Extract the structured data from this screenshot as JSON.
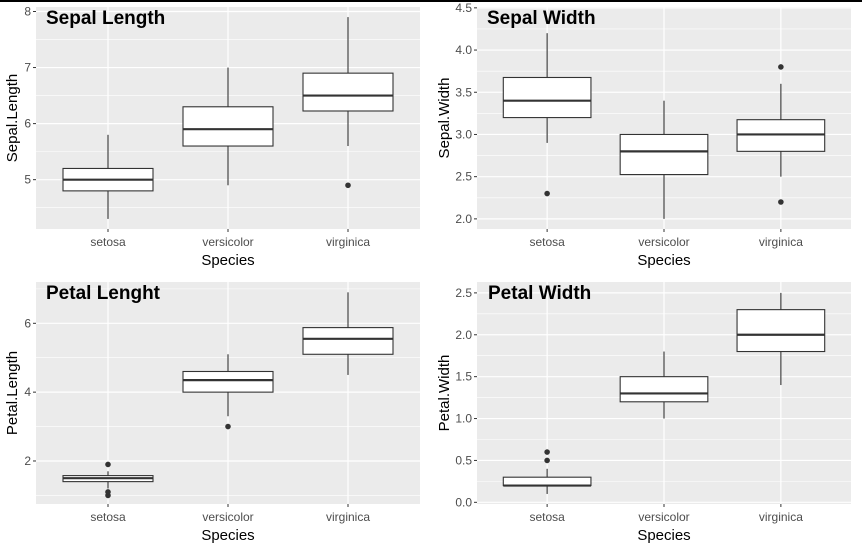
{
  "chart_data": [
    {
      "type": "boxplot",
      "title": "Sepal Length",
      "xlabel": "Species",
      "ylabel": "Sepal.Length",
      "categories": [
        "setosa",
        "versicolor",
        "virginica"
      ],
      "ylim": [
        4.12,
        8.08
      ],
      "yticks": [
        5,
        6,
        7,
        8
      ],
      "ytick_labels": [
        "5",
        "6",
        "7",
        "8"
      ],
      "minor_grid": [
        4.5,
        5.5,
        6.5,
        7.5
      ],
      "grid": true,
      "boxes": [
        {
          "category": "setosa",
          "lower_whisker": 4.3,
          "q1": 4.8,
          "median": 5.0,
          "q3": 5.2,
          "upper_whisker": 5.8,
          "outliers": []
        },
        {
          "category": "versicolor",
          "lower_whisker": 4.9,
          "q1": 5.6,
          "median": 5.9,
          "q3": 6.3,
          "upper_whisker": 7.0,
          "outliers": []
        },
        {
          "category": "virginica",
          "lower_whisker": 5.6,
          "q1": 6.225,
          "median": 6.5,
          "q3": 6.9,
          "upper_whisker": 7.9,
          "outliers": [
            4.9
          ]
        }
      ]
    },
    {
      "type": "boxplot",
      "title": "Sepal Width",
      "xlabel": "Species",
      "ylabel": "Sepal.Width",
      "categories": [
        "setosa",
        "versicolor",
        "virginica"
      ],
      "ylim": [
        1.88,
        4.51
      ],
      "yticks": [
        2.0,
        2.5,
        3.0,
        3.5,
        4.0,
        4.5
      ],
      "ytick_labels": [
        "2.0",
        "2.5",
        "3.0",
        "3.5",
        "4.0",
        "4.5"
      ],
      "minor_grid": [
        2.25,
        2.75,
        3.25,
        3.75,
        4.25
      ],
      "grid": true,
      "boxes": [
        {
          "category": "setosa",
          "lower_whisker": 2.9,
          "q1": 3.2,
          "median": 3.4,
          "q3": 3.675,
          "upper_whisker": 4.2,
          "outliers": [
            2.3
          ]
        },
        {
          "category": "versicolor",
          "lower_whisker": 2.0,
          "q1": 2.525,
          "median": 2.8,
          "q3": 3.0,
          "upper_whisker": 3.4,
          "outliers": []
        },
        {
          "category": "virginica",
          "lower_whisker": 2.5,
          "q1": 2.8,
          "median": 3.0,
          "q3": 3.175,
          "upper_whisker": 3.6,
          "outliers": [
            2.2,
            3.8
          ]
        }
      ]
    },
    {
      "type": "boxplot",
      "title": "Petal Lenght",
      "xlabel": "Species",
      "ylabel": "Petal.Length",
      "categories": [
        "setosa",
        "versicolor",
        "virginica"
      ],
      "ylim": [
        0.75,
        7.2
      ],
      "yticks": [
        2,
        4,
        6
      ],
      "ytick_labels": [
        "2",
        "4",
        "6"
      ],
      "minor_grid": [
        1,
        3,
        5,
        7
      ],
      "grid": true,
      "boxes": [
        {
          "category": "setosa",
          "lower_whisker": 1.2,
          "q1": 1.4,
          "median": 1.5,
          "q3": 1.575,
          "upper_whisker": 1.7,
          "outliers": [
            1.0,
            1.1,
            1.9
          ]
        },
        {
          "category": "versicolor",
          "lower_whisker": 3.3,
          "q1": 4.0,
          "median": 4.35,
          "q3": 4.6,
          "upper_whisker": 5.1,
          "outliers": [
            3.0
          ]
        },
        {
          "category": "virginica",
          "lower_whisker": 4.5,
          "q1": 5.1,
          "median": 5.55,
          "q3": 5.875,
          "upper_whisker": 6.9,
          "outliers": []
        }
      ]
    },
    {
      "type": "boxplot",
      "title": "Petal Width",
      "xlabel": "Species",
      "ylabel": "Petal.Width",
      "categories": [
        "setosa",
        "versicolor",
        "virginica"
      ],
      "ylim": [
        -0.02,
        2.63
      ],
      "yticks": [
        0.0,
        0.5,
        1.0,
        1.5,
        2.0,
        2.5
      ],
      "ytick_labels": [
        "0.0",
        "0.5",
        "1.0",
        "1.5",
        "2.0",
        "2.5"
      ],
      "minor_grid": [
        0.25,
        0.75,
        1.25,
        1.75,
        2.25
      ],
      "grid": true,
      "boxes": [
        {
          "category": "setosa",
          "lower_whisker": 0.1,
          "q1": 0.2,
          "median": 0.2,
          "q3": 0.3,
          "upper_whisker": 0.4,
          "outliers": [
            0.5,
            0.6
          ]
        },
        {
          "category": "versicolor",
          "lower_whisker": 1.0,
          "q1": 1.2,
          "median": 1.3,
          "q3": 1.5,
          "upper_whisker": 1.8,
          "outliers": []
        },
        {
          "category": "virginica",
          "lower_whisker": 1.4,
          "q1": 1.8,
          "median": 2.0,
          "q3": 2.3,
          "upper_whisker": 2.5,
          "outliers": []
        }
      ]
    }
  ],
  "colors": {
    "panel_background": "#ebebeb",
    "grid": "#ffffff",
    "box_fill": "#ffffff",
    "box_line": "#333333",
    "tick_text": "#4d4d4d",
    "title_text": "#000000"
  }
}
